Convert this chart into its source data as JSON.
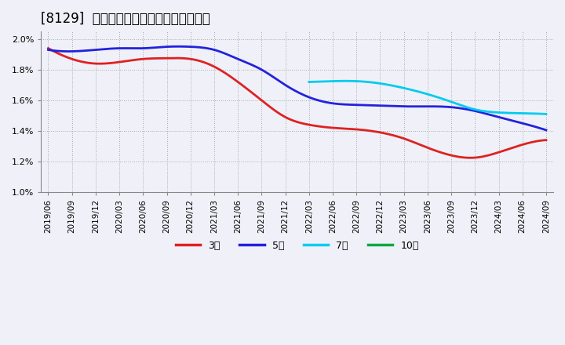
{
  "title": "[8129]  経常利益マージンの平均値の推移",
  "ylim": [
    0.01,
    0.0205
  ],
  "yticks": [
    0.01,
    0.012,
    0.014,
    0.016,
    0.018,
    0.02
  ],
  "background_color": "#f0f0f8",
  "plot_bg_color": "#f0f0f8",
  "grid_color": "#aaaaaa",
  "series": {
    "3年": {
      "color": "#dd2222",
      "data_x": [
        0,
        1,
        2,
        3,
        4,
        5,
        6,
        7,
        8,
        9,
        10,
        11,
        12,
        13,
        14,
        15,
        16,
        17,
        18,
        19,
        20,
        21
      ],
      "data_y": [
        0.0194,
        0.0187,
        0.0184,
        0.0185,
        0.0187,
        0.01875,
        0.0187,
        0.0182,
        0.0172,
        0.016,
        0.0149,
        0.0144,
        0.0142,
        0.0141,
        0.0139,
        0.0135,
        0.0129,
        0.0124,
        0.01225,
        0.0126,
        0.0131,
        0.0134
      ]
    },
    "5年": {
      "color": "#2222dd",
      "data_x": [
        0,
        1,
        2,
        3,
        4,
        5,
        6,
        7,
        8,
        9,
        10,
        11,
        12,
        13,
        14,
        15,
        16,
        17,
        18,
        19,
        20,
        21
      ],
      "data_y": [
        0.0193,
        0.0192,
        0.0193,
        0.0194,
        0.0194,
        0.0195,
        0.0195,
        0.0193,
        0.0187,
        0.018,
        0.017,
        0.0162,
        0.0158,
        0.0157,
        0.01565,
        0.0156,
        0.0156,
        0.01555,
        0.0153,
        0.0149,
        0.0145,
        0.01405
      ]
    },
    "7年": {
      "color": "#00ccee",
      "data_x": [
        11,
        12,
        13,
        14,
        15,
        16,
        17,
        18,
        19,
        20,
        21
      ],
      "data_y": [
        0.0172,
        0.01725,
        0.01725,
        0.0171,
        0.0168,
        0.0164,
        0.0159,
        0.0154,
        0.0152,
        0.01515,
        0.0151
      ]
    },
    "10年": {
      "color": "#00aa44",
      "data_x": [],
      "data_y": []
    }
  },
  "x_labels": [
    "2019/06",
    "2019/09",
    "2019/12",
    "2020/03",
    "2020/06",
    "2020/09",
    "2020/12",
    "2021/03",
    "2021/06",
    "2021/09",
    "2021/12",
    "2022/03",
    "2022/06",
    "2022/09",
    "2022/12",
    "2023/03",
    "2023/06",
    "2023/09",
    "2023/12",
    "2024/03",
    "2024/06",
    "2024/09"
  ],
  "legend": [
    {
      "label": "3年",
      "color": "#dd2222"
    },
    {
      "label": "5年",
      "color": "#2222dd"
    },
    {
      "label": "7年",
      "color": "#00ccee"
    },
    {
      "label": "10年",
      "color": "#00aa44"
    }
  ],
  "title_fontsize": 12,
  "tick_fontsize": 7.5,
  "linewidth": 2.0
}
